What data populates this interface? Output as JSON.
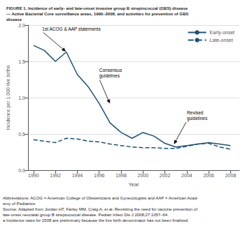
{
  "chart_data": {
    "type": "line",
    "title": "FIGURE 1. Incidence of early- and late-onset invasive group B streptococcal (GBS) disease\n— Active Bacterial Core surveillance areas, 1990–2008, and activities for prevention of GBS\ndisease",
    "xlabel": "Year",
    "ylabel": "Incidence per 1,000 live births",
    "x": [
      1990,
      1991,
      1992,
      1993,
      1994,
      1995,
      1996,
      1997,
      1998,
      1999,
      2000,
      2001,
      2002,
      2003,
      2004,
      2005,
      2006,
      2007,
      2008
    ],
    "series": [
      {
        "name": "Early-onset",
        "color": "#1a5276",
        "line_style": "solid",
        "values": [
          1.72,
          1.65,
          1.5,
          1.63,
          1.32,
          1.15,
          0.92,
          0.65,
          0.52,
          0.44,
          0.52,
          0.47,
          0.37,
          0.32,
          0.34,
          0.36,
          0.38,
          0.36,
          0.34
        ]
      },
      {
        "name": "Late-onset",
        "color": "#1a5276",
        "line_style": "dashed",
        "values": [
          0.42,
          0.4,
          0.38,
          0.44,
          0.43,
          0.4,
          0.39,
          0.36,
          0.34,
          0.32,
          0.31,
          0.31,
          0.3,
          0.3,
          0.33,
          0.36,
          0.37,
          0.32,
          0.29
        ]
      }
    ],
    "xlim": [
      1989.5,
      2008.8
    ],
    "xticks": [
      1990,
      1992,
      1994,
      1996,
      1998,
      2000,
      2002,
      2004,
      2006,
      2008
    ],
    "ylim": [
      0.0,
      2.0
    ],
    "yticks": [
      {
        "value": 0.0,
        "label": "0.0"
      },
      {
        "value": 0.5,
        "label": "0.5"
      },
      {
        "value": 1.0,
        "label": "1.0"
      },
      {
        "value": 1.5,
        "label": "1.5"
      },
      {
        "value": 2.0,
        "label": "2.0"
      }
    ],
    "grid": true,
    "legend": "upper right",
    "annotations": [
      {
        "text": "1st ACOG & AAP statements",
        "xy": [
          1993,
          1.63
        ],
        "xytext": [
          1990.8,
          1.91
        ]
      },
      {
        "text": "Consensus\nguidelines",
        "xy": [
          1997,
          0.91
        ],
        "xytext": [
          1996.0,
          1.26
        ]
      },
      {
        "text": "Revised\nguidelines",
        "xy": [
          2002.8,
          0.35
        ],
        "xytext": [
          2004.0,
          0.68
        ]
      }
    ],
    "footnotes": [
      "Abbreviations: ACOG = American College of Obstetricians and Gynecologists and AAP = American Acad-",
      "emy of Pediatrics.",
      "Source: Adapted from Jordan HT, Farley MM, Craig A, et al. Revisiting the need for vaccine prevention of",
      "late-onset neonatal group B streptococcal disease. Pediatr Infect Dis J 2008;27:1057–64.",
      "a Incidence rates for 2008 are preliminary because the live birth denominator has not been finalized."
    ]
  }
}
